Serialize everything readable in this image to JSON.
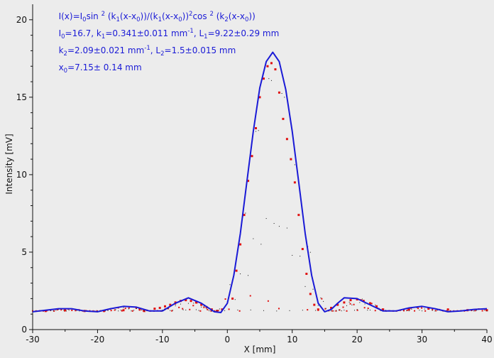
{
  "chart_data": {
    "type": "scatter",
    "title": "",
    "xlabel": "X [mm]",
    "ylabel": "Intensity [mV]",
    "xlim": [
      -30,
      40
    ],
    "ylim": [
      0,
      21
    ],
    "x_ticks": [
      -30,
      -20,
      -10,
      0,
      10,
      20,
      30,
      40
    ],
    "y_ticks": [
      0,
      5,
      10,
      15,
      20
    ],
    "grid": false,
    "fit_params": {
      "I0": 16.7,
      "k1": 0.341,
      "L1": 9.22,
      "k2": 2.09,
      "L2": 1.5,
      "x0": 7.15,
      "baseline": 1.2
    },
    "annotations": [
      [
        "I(x)=I",
        {
          "t": "0",
          "s": "sub"
        },
        "sin ",
        {
          "t": "2",
          "s": "sup"
        },
        " (k",
        {
          "t": "1",
          "s": "sub"
        },
        "(x-x",
        {
          "t": "0",
          "s": "sub"
        },
        "))/(k",
        {
          "t": "1",
          "s": "sub"
        },
        "(x-x",
        {
          "t": "0",
          "s": "sub"
        },
        "))",
        {
          "t": "2",
          "s": "sup"
        },
        "cos ",
        {
          "t": "2",
          "s": "sup"
        },
        " (k",
        {
          "t": "2",
          "s": "sub"
        },
        "(x-x",
        {
          "t": "0",
          "s": "sub"
        },
        "))"
      ],
      [
        "I",
        {
          "t": "0",
          "s": "sub"
        },
        "=16.7,  k",
        {
          "t": "1",
          "s": "sub"
        },
        "=0.341±0.011 mm",
        {
          "t": "-1",
          "s": "sup"
        },
        ",   L",
        {
          "t": "1",
          "s": "sub"
        },
        "=9.22±0.29 mm"
      ],
      [
        "k",
        {
          "t": "2",
          "s": "sub"
        },
        "=2.09±0.021 mm",
        {
          "t": "-1",
          "s": "sup"
        },
        ",   L",
        {
          "t": "2",
          "s": "sub"
        },
        "=1.5±0.015 mm"
      ],
      [
        "x",
        {
          "t": "0",
          "s": "sub"
        },
        "=7.15±  0.14 mm"
      ]
    ],
    "series": [
      {
        "role": "envelope-fit",
        "color": "#1a1ad6",
        "x": [
          -30,
          -28,
          -26,
          -24,
          -22,
          -20,
          -18,
          -16,
          -14,
          -12,
          -10,
          -8,
          -6,
          -4,
          -2,
          -1,
          0,
          1,
          2,
          3,
          4,
          5,
          6,
          7,
          8,
          9,
          10,
          11,
          12,
          13,
          14,
          15,
          16,
          17,
          18,
          20,
          22,
          24,
          26,
          28,
          30,
          32,
          34,
          36,
          38,
          40
        ],
        "y": [
          1.15,
          1.25,
          1.35,
          1.35,
          1.2,
          1.15,
          1.35,
          1.5,
          1.45,
          1.2,
          1.2,
          1.7,
          2.05,
          1.7,
          1.15,
          1.1,
          1.7,
          3.5,
          6.2,
          9.5,
          12.8,
          15.6,
          17.3,
          17.9,
          17.3,
          15.5,
          12.8,
          9.5,
          6.2,
          3.5,
          1.7,
          1.15,
          1.3,
          1.7,
          2.05,
          2.0,
          1.6,
          1.2,
          1.2,
          1.4,
          1.5,
          1.35,
          1.15,
          1.2,
          1.3,
          1.35
        ]
      },
      {
        "role": "fringe-minima",
        "color": "#111111",
        "y_from_baseline": true
      },
      {
        "role": "measured",
        "color": "#e01010",
        "x": [
          -13.5,
          -12.8,
          -11.2,
          -10.4,
          -9.6,
          -8.8,
          -8.0,
          -7.2,
          -6.4,
          -5.6,
          -4.8,
          -4.0,
          -3.2,
          -2.4,
          -1.6,
          -0.8,
          0.8,
          1.4,
          2.0,
          2.6,
          3.2,
          3.8,
          4.4,
          5.0,
          5.6,
          6.2,
          6.8,
          7.4,
          8.0,
          8.6,
          9.2,
          9.8,
          10.4,
          11.0,
          11.6,
          12.2,
          12.8,
          13.4,
          14.0,
          16.0,
          17.0,
          18.0,
          19.0,
          20.0,
          21.0,
          22.0,
          23.0,
          24.0,
          -28,
          -25,
          -22,
          -19,
          -16,
          28,
          31,
          34,
          37,
          40
        ],
        "y": [
          1.3,
          1.2,
          1.35,
          1.4,
          1.5,
          1.6,
          1.75,
          1.85,
          1.9,
          1.85,
          1.75,
          1.6,
          1.45,
          1.3,
          1.2,
          1.3,
          2.0,
          3.8,
          5.5,
          7.4,
          9.6,
          11.2,
          13.0,
          15.0,
          16.2,
          17.0,
          17.2,
          16.8,
          15.3,
          13.6,
          12.3,
          11.0,
          9.5,
          7.4,
          5.2,
          3.6,
          2.3,
          1.6,
          1.3,
          1.4,
          1.6,
          1.75,
          1.9,
          1.95,
          1.85,
          1.7,
          1.5,
          1.3,
          1.2,
          1.25,
          1.2,
          1.2,
          1.25,
          1.3,
          1.35,
          1.3,
          1.25,
          1.25
        ]
      }
    ]
  }
}
